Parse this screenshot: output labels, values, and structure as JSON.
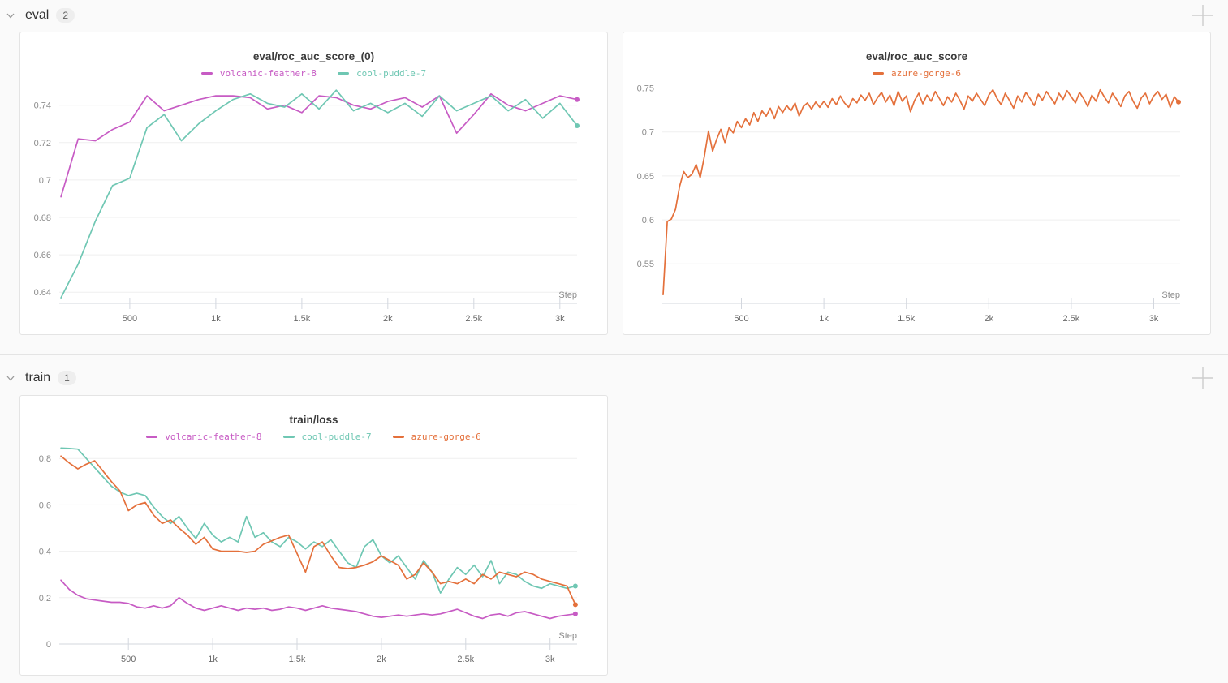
{
  "page": {
    "background": "#FAFAFA"
  },
  "icons": {
    "collapse": "chevron-down-icon",
    "add": "plus-icon"
  },
  "sections": [
    {
      "label": "eval",
      "count": "2"
    },
    {
      "label": "train",
      "count": "1"
    }
  ],
  "run_colors": {
    "volcanic-feather-8": "#C75BC4",
    "cool-puddle-7": "#6FC7B3",
    "azure-gorge-6": "#E4703B"
  },
  "chart_data": [
    {
      "id": "eval-roc-auc-score-0",
      "type": "line",
      "title": "eval/roc_auc_score_(0)",
      "xlabel": "Step",
      "ylabel": "",
      "legend_position": "top",
      "grid": true,
      "xlim": [
        90,
        3100
      ],
      "ylim": [
        0.634,
        0.752
      ],
      "xticks": {
        "values": [
          500,
          1000,
          1500,
          2000,
          2500,
          3000
        ],
        "labels": [
          "500",
          "1k",
          "1.5k",
          "2k",
          "2.5k",
          "3k"
        ]
      },
      "yticks": {
        "values": [
          0.64,
          0.66,
          0.68,
          0.7,
          0.72,
          0.74
        ],
        "labels": [
          "0.64",
          "0.66",
          "0.68",
          "0.7",
          "0.72",
          "0.74"
        ]
      },
      "series": [
        {
          "name": "volcanic-feather-8",
          "color": "#C75BC4",
          "end_dot": true,
          "x": [
            100,
            200,
            300,
            400,
            500,
            600,
            700,
            800,
            900,
            1000,
            1100,
            1200,
            1300,
            1400,
            1500,
            1600,
            1700,
            1800,
            1900,
            2000,
            2100,
            2200,
            2300,
            2400,
            2500,
            2600,
            2700,
            2800,
            2900,
            3000,
            3100
          ],
          "y": [
            0.691,
            0.722,
            0.721,
            0.727,
            0.731,
            0.745,
            0.737,
            0.74,
            0.743,
            0.745,
            0.745,
            0.744,
            0.738,
            0.74,
            0.736,
            0.745,
            0.744,
            0.74,
            0.738,
            0.742,
            0.744,
            0.739,
            0.745,
            0.725,
            0.735,
            0.746,
            0.74,
            0.737,
            0.741,
            0.745,
            0.743
          ]
        },
        {
          "name": "cool-puddle-7",
          "color": "#6FC7B3",
          "end_dot": true,
          "x": [
            100,
            200,
            300,
            400,
            500,
            600,
            700,
            800,
            900,
            1000,
            1100,
            1200,
            1300,
            1400,
            1500,
            1600,
            1700,
            1800,
            1900,
            2000,
            2100,
            2200,
            2300,
            2400,
            2500,
            2600,
            2700,
            2800,
            2900,
            3000,
            3100
          ],
          "y": [
            0.637,
            0.655,
            0.678,
            0.697,
            0.701,
            0.728,
            0.735,
            0.721,
            0.73,
            0.737,
            0.743,
            0.746,
            0.741,
            0.739,
            0.746,
            0.738,
            0.748,
            0.737,
            0.741,
            0.736,
            0.741,
            0.734,
            0.745,
            0.737,
            0.741,
            0.745,
            0.737,
            0.743,
            0.733,
            0.741,
            0.729
          ]
        }
      ]
    },
    {
      "id": "eval-roc-auc-score",
      "type": "line",
      "title": "eval/roc_auc_score",
      "xlabel": "Step",
      "ylabel": "",
      "legend_position": "top",
      "grid": true,
      "xlim": [
        20,
        3160
      ],
      "ylim": [
        0.505,
        0.756
      ],
      "xticks": {
        "values": [
          500,
          1000,
          1500,
          2000,
          2500,
          3000
        ],
        "labels": [
          "500",
          "1k",
          "1.5k",
          "2k",
          "2.5k",
          "3k"
        ]
      },
      "yticks": {
        "values": [
          0.55,
          0.6,
          0.65,
          0.7,
          0.75
        ],
        "labels": [
          "0.55",
          "0.6",
          "0.65",
          "0.7",
          "0.75"
        ]
      },
      "series": [
        {
          "name": "azure-gorge-6",
          "color": "#E4703B",
          "end_dot": true,
          "x": [
            25,
            50,
            75,
            100,
            125,
            150,
            175,
            200,
            225,
            250,
            275,
            300,
            325,
            350,
            375,
            400,
            425,
            450,
            475,
            500,
            525,
            550,
            575,
            600,
            625,
            650,
            675,
            700,
            725,
            750,
            775,
            800,
            825,
            850,
            875,
            900,
            925,
            950,
            975,
            1000,
            1025,
            1050,
            1075,
            1100,
            1125,
            1150,
            1175,
            1200,
            1225,
            1250,
            1275,
            1300,
            1325,
            1350,
            1375,
            1400,
            1425,
            1450,
            1475,
            1500,
            1525,
            1550,
            1575,
            1600,
            1625,
            1650,
            1675,
            1700,
            1725,
            1750,
            1775,
            1800,
            1825,
            1850,
            1875,
            1900,
            1925,
            1950,
            1975,
            2000,
            2025,
            2050,
            2075,
            2100,
            2125,
            2150,
            2175,
            2200,
            2225,
            2250,
            2275,
            2300,
            2325,
            2350,
            2375,
            2400,
            2425,
            2450,
            2475,
            2500,
            2525,
            2550,
            2575,
            2600,
            2625,
            2650,
            2675,
            2700,
            2725,
            2750,
            2775,
            2800,
            2825,
            2850,
            2875,
            2900,
            2925,
            2950,
            2975,
            3000,
            3025,
            3050,
            3075,
            3100,
            3125,
            3150
          ],
          "y": [
            0.515,
            0.598,
            0.601,
            0.612,
            0.638,
            0.655,
            0.648,
            0.652,
            0.663,
            0.648,
            0.672,
            0.701,
            0.678,
            0.692,
            0.703,
            0.688,
            0.705,
            0.699,
            0.712,
            0.705,
            0.715,
            0.708,
            0.722,
            0.712,
            0.724,
            0.718,
            0.727,
            0.715,
            0.729,
            0.722,
            0.73,
            0.724,
            0.733,
            0.718,
            0.729,
            0.733,
            0.726,
            0.734,
            0.728,
            0.735,
            0.728,
            0.738,
            0.731,
            0.741,
            0.733,
            0.728,
            0.738,
            0.733,
            0.742,
            0.736,
            0.744,
            0.731,
            0.739,
            0.745,
            0.734,
            0.742,
            0.73,
            0.746,
            0.735,
            0.741,
            0.723,
            0.736,
            0.744,
            0.732,
            0.742,
            0.735,
            0.746,
            0.738,
            0.73,
            0.74,
            0.734,
            0.744,
            0.736,
            0.726,
            0.741,
            0.735,
            0.744,
            0.737,
            0.73,
            0.742,
            0.748,
            0.738,
            0.731,
            0.744,
            0.736,
            0.727,
            0.741,
            0.734,
            0.745,
            0.738,
            0.73,
            0.743,
            0.736,
            0.746,
            0.739,
            0.732,
            0.744,
            0.737,
            0.747,
            0.74,
            0.733,
            0.745,
            0.738,
            0.729,
            0.742,
            0.735,
            0.748,
            0.74,
            0.733,
            0.744,
            0.737,
            0.729,
            0.741,
            0.746,
            0.735,
            0.727,
            0.739,
            0.744,
            0.732,
            0.741,
            0.746,
            0.737,
            0.743,
            0.728,
            0.74,
            0.734
          ]
        }
      ]
    },
    {
      "id": "train-loss",
      "type": "line",
      "title": "train/loss",
      "xlabel": "Step",
      "ylabel": "",
      "legend_position": "top",
      "grid": true,
      "xlim": [
        90,
        3160
      ],
      "ylim": [
        0,
        0.853
      ],
      "xticks": {
        "values": [
          500,
          1000,
          1500,
          2000,
          2500,
          3000
        ],
        "labels": [
          "500",
          "1k",
          "1.5k",
          "2k",
          "2.5k",
          "3k"
        ]
      },
      "yticks": {
        "values": [
          0,
          0.2,
          0.4,
          0.6,
          0.8
        ],
        "labels": [
          "0",
          "0.2",
          "0.4",
          "0.6",
          "0.8"
        ]
      },
      "series": [
        {
          "name": "volcanic-feather-8",
          "color": "#C75BC4",
          "end_dot": true,
          "x": [
            100,
            150,
            200,
            250,
            300,
            350,
            400,
            450,
            500,
            550,
            600,
            650,
            700,
            750,
            800,
            850,
            900,
            950,
            1000,
            1050,
            1100,
            1150,
            1200,
            1250,
            1300,
            1350,
            1400,
            1450,
            1500,
            1550,
            1600,
            1650,
            1700,
            1750,
            1800,
            1850,
            1900,
            1950,
            2000,
            2050,
            2100,
            2150,
            2200,
            2250,
            2300,
            2350,
            2400,
            2450,
            2500,
            2550,
            2600,
            2650,
            2700,
            2750,
            2800,
            2850,
            2900,
            2950,
            3000,
            3050,
            3100,
            3150
          ],
          "y": [
            0.275,
            0.235,
            0.21,
            0.195,
            0.19,
            0.185,
            0.18,
            0.18,
            0.175,
            0.16,
            0.155,
            0.165,
            0.155,
            0.165,
            0.2,
            0.175,
            0.155,
            0.145,
            0.155,
            0.165,
            0.155,
            0.145,
            0.155,
            0.15,
            0.155,
            0.145,
            0.15,
            0.16,
            0.155,
            0.145,
            0.155,
            0.165,
            0.155,
            0.15,
            0.145,
            0.14,
            0.13,
            0.12,
            0.115,
            0.12,
            0.125,
            0.12,
            0.125,
            0.13,
            0.125,
            0.13,
            0.14,
            0.15,
            0.135,
            0.12,
            0.11,
            0.125,
            0.13,
            0.12,
            0.135,
            0.14,
            0.13,
            0.12,
            0.11,
            0.12,
            0.125,
            0.13
          ]
        },
        {
          "name": "cool-puddle-7",
          "color": "#6FC7B3",
          "end_dot": true,
          "x": [
            100,
            150,
            200,
            250,
            300,
            350,
            400,
            450,
            500,
            550,
            600,
            650,
            700,
            750,
            800,
            850,
            900,
            950,
            1000,
            1050,
            1100,
            1150,
            1200,
            1250,
            1300,
            1350,
            1400,
            1450,
            1500,
            1550,
            1600,
            1650,
            1700,
            1750,
            1800,
            1850,
            1900,
            1950,
            2000,
            2050,
            2100,
            2150,
            2200,
            2250,
            2300,
            2350,
            2400,
            2450,
            2500,
            2550,
            2600,
            2650,
            2700,
            2750,
            2800,
            2850,
            2900,
            2950,
            3000,
            3050,
            3100,
            3150
          ],
          "y": [
            0.845,
            0.843,
            0.84,
            0.8,
            0.76,
            0.72,
            0.68,
            0.655,
            0.64,
            0.65,
            0.64,
            0.59,
            0.55,
            0.52,
            0.55,
            0.5,
            0.455,
            0.52,
            0.47,
            0.44,
            0.46,
            0.44,
            0.55,
            0.46,
            0.48,
            0.44,
            0.42,
            0.46,
            0.44,
            0.41,
            0.44,
            0.42,
            0.45,
            0.4,
            0.35,
            0.33,
            0.42,
            0.45,
            0.38,
            0.35,
            0.38,
            0.33,
            0.28,
            0.36,
            0.31,
            0.22,
            0.28,
            0.33,
            0.3,
            0.34,
            0.29,
            0.36,
            0.26,
            0.31,
            0.3,
            0.27,
            0.25,
            0.24,
            0.26,
            0.25,
            0.24,
            0.25
          ]
        },
        {
          "name": "azure-gorge-6",
          "color": "#E4703B",
          "end_dot": true,
          "x": [
            100,
            150,
            200,
            250,
            300,
            350,
            400,
            450,
            500,
            550,
            600,
            650,
            700,
            750,
            800,
            850,
            900,
            950,
            1000,
            1050,
            1100,
            1150,
            1200,
            1250,
            1300,
            1350,
            1400,
            1450,
            1500,
            1550,
            1600,
            1650,
            1700,
            1750,
            1800,
            1850,
            1900,
            1950,
            2000,
            2050,
            2100,
            2150,
            2200,
            2250,
            2300,
            2350,
            2400,
            2450,
            2500,
            2550,
            2600,
            2650,
            2700,
            2750,
            2800,
            2850,
            2900,
            2950,
            3000,
            3050,
            3100,
            3150
          ],
          "y": [
            0.81,
            0.78,
            0.755,
            0.775,
            0.79,
            0.745,
            0.7,
            0.66,
            0.575,
            0.6,
            0.61,
            0.555,
            0.52,
            0.535,
            0.5,
            0.47,
            0.43,
            0.46,
            0.41,
            0.4,
            0.4,
            0.4,
            0.395,
            0.4,
            0.43,
            0.445,
            0.46,
            0.47,
            0.39,
            0.31,
            0.42,
            0.44,
            0.38,
            0.33,
            0.325,
            0.33,
            0.34,
            0.355,
            0.38,
            0.36,
            0.34,
            0.28,
            0.3,
            0.35,
            0.31,
            0.26,
            0.27,
            0.26,
            0.28,
            0.26,
            0.3,
            0.28,
            0.31,
            0.3,
            0.29,
            0.31,
            0.3,
            0.28,
            0.27,
            0.26,
            0.25,
            0.17
          ]
        }
      ]
    }
  ]
}
